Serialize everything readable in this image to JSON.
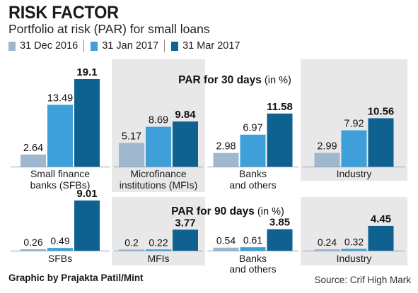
{
  "title": "RISK FACTOR",
  "subtitle": "Portfolio at risk (PAR) for small loans",
  "legend": [
    {
      "label": "31 Dec 2016",
      "color": "#9fb7cf"
    },
    {
      "label": "31 Jan 2017",
      "color": "#3fa0d9"
    },
    {
      "label": "31 Mar 2017",
      "color": "#0f628f"
    }
  ],
  "credit": "Graphic by Prajakta Patil/Mint",
  "source": "Source: Crif High Mark",
  "colors": {
    "panel_bg": "#e8e8e8",
    "baseline": "#8aa5bd"
  },
  "chart_data": [
    {
      "type": "bar",
      "title": "PAR for 30 days",
      "unit": "(in %)",
      "series_names": [
        "31 Dec 2016",
        "31 Jan 2017",
        "31 Mar 2017"
      ],
      "groups": [
        {
          "label": [
            "Small finance",
            "banks (SFBs)"
          ],
          "values": [
            2.64,
            13.49,
            19.1
          ],
          "labels": [
            "2.64",
            "13.49",
            "19.1"
          ],
          "shaded": false
        },
        {
          "label": [
            "Microfinance",
            "institutions (MFIs)"
          ],
          "values": [
            5.17,
            8.69,
            9.84
          ],
          "labels": [
            "5.17",
            "8.69",
            "9.84"
          ],
          "shaded": true
        },
        {
          "label": [
            "Banks",
            "and others"
          ],
          "values": [
            2.98,
            6.97,
            11.58
          ],
          "labels": [
            "2.98",
            "6.97",
            "11.58"
          ],
          "shaded": false
        },
        {
          "label": [
            "Industry"
          ],
          "values": [
            2.99,
            7.92,
            10.56
          ],
          "labels": [
            "2.99",
            "7.92",
            "10.56"
          ],
          "shaded": true
        }
      ]
    },
    {
      "type": "bar",
      "title": "PAR for 90 days",
      "unit": "(in %)",
      "series_names": [
        "31 Dec 2016",
        "31 Jan 2017",
        "31 Mar 2017"
      ],
      "groups": [
        {
          "label": [
            "SFBs"
          ],
          "values": [
            0.26,
            0.49,
            9.01
          ],
          "labels": [
            "0.26",
            "0.49",
            "9.01"
          ],
          "shaded": false
        },
        {
          "label": [
            "MFIs"
          ],
          "values": [
            0.2,
            0.22,
            3.77
          ],
          "labels": [
            "0.2",
            "0.22",
            "3.77"
          ],
          "shaded": true
        },
        {
          "label": [
            "Banks",
            "and others"
          ],
          "values": [
            0.54,
            0.61,
            3.85
          ],
          "labels": [
            "0.54",
            "0.61",
            "3.85"
          ],
          "shaded": false
        },
        {
          "label": [
            "Industry"
          ],
          "values": [
            0.24,
            0.32,
            4.45
          ],
          "labels": [
            "0.24",
            "0.32",
            "4.45"
          ],
          "shaded": true
        }
      ]
    }
  ]
}
